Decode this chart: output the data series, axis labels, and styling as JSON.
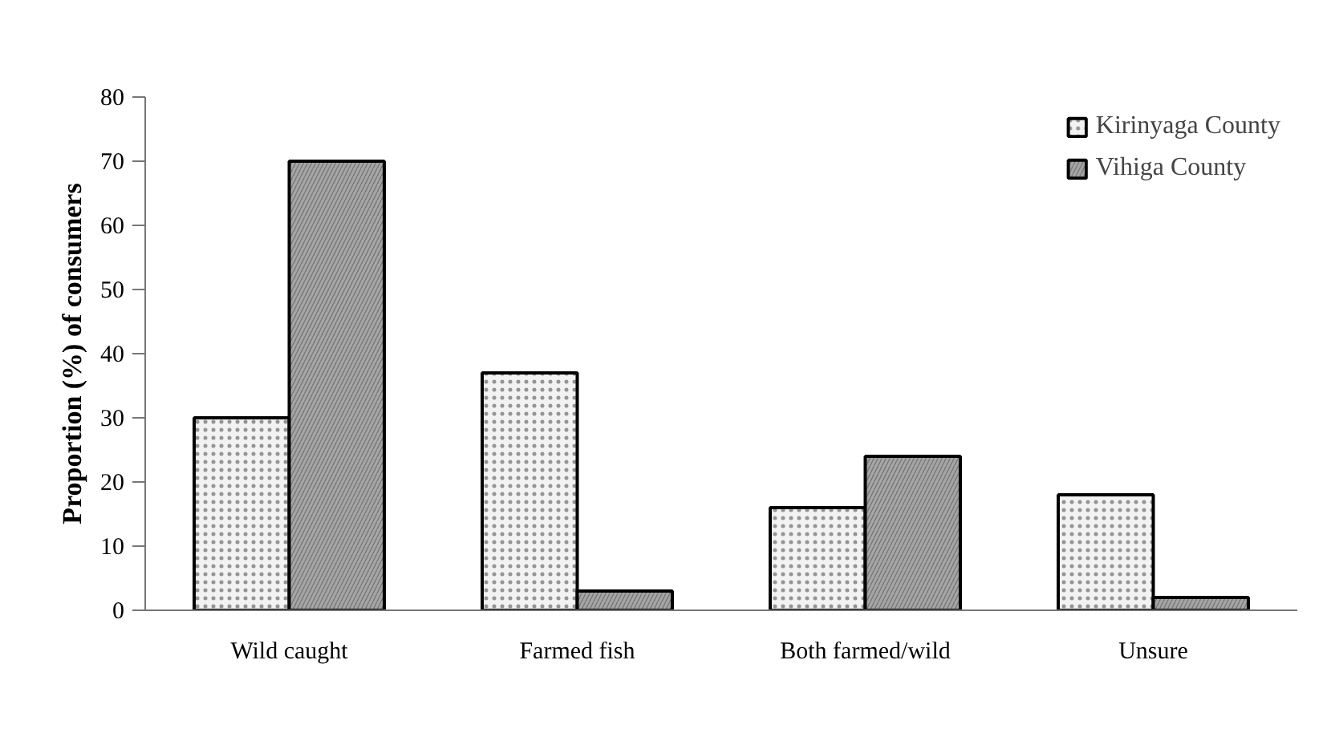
{
  "chart_data": {
    "type": "bar",
    "ylabel": "Proportion (%) of consumers",
    "categories": [
      "Wild caught",
      "Farmed fish",
      "Both farmed/wild",
      "Unsure"
    ],
    "series": [
      {
        "name": "Kirinyaga County",
        "color": "#f2f2f2",
        "values": [
          30,
          37,
          16,
          18
        ]
      },
      {
        "name": "Vihiga County",
        "color": "#a6a6a6",
        "values": [
          70,
          3,
          24,
          2
        ]
      }
    ],
    "ylim": [
      0,
      80
    ],
    "yticks": [
      0,
      10,
      20,
      30,
      40,
      50,
      60,
      70,
      80
    ],
    "grid": false,
    "legend": "top right"
  }
}
